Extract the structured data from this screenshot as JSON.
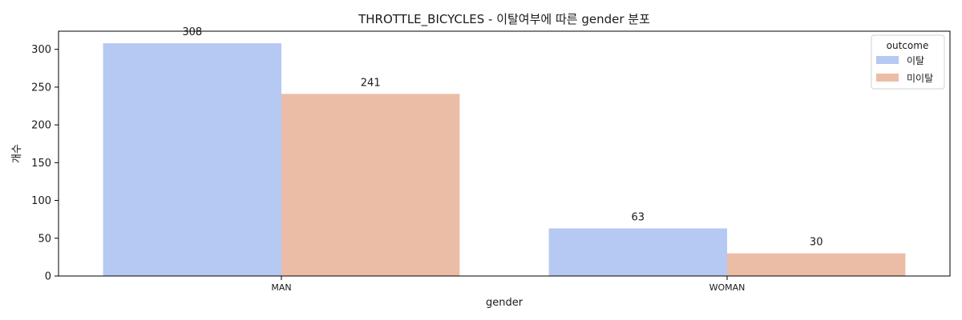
{
  "chart_data": {
    "type": "bar",
    "title": "THROTTLE_BICYCLES - 이탈여부에 따른 gender 분포",
    "xlabel": "gender",
    "ylabel": "개수",
    "categories": [
      "MAN",
      "WOMAN"
    ],
    "series": [
      {
        "name": "이탈",
        "values": [
          308,
          63
        ],
        "color": "#b5c9f3"
      },
      {
        "name": "미이탈",
        "values": [
          241,
          30
        ],
        "color": "#ecbda6"
      }
    ],
    "ylim": [
      0,
      324
    ],
    "yticks": [
      0,
      50,
      100,
      150,
      200,
      250,
      300
    ],
    "legend": {
      "title": "outcome",
      "position": "top-right"
    },
    "grid": false
  }
}
